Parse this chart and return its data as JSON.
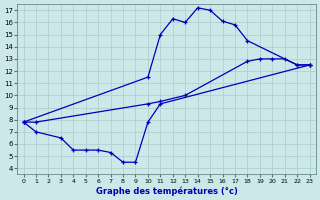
{
  "xlabel": "Graphe des températures (°c)",
  "bg_color": "#cce8e8",
  "grid_color": "#aacccc",
  "line_color": "#0000bb",
  "xlim": [
    -0.5,
    23.5
  ],
  "ylim": [
    3.5,
    17.5
  ],
  "xticks": [
    0,
    1,
    2,
    3,
    4,
    5,
    6,
    7,
    8,
    9,
    10,
    11,
    12,
    13,
    14,
    15,
    16,
    17,
    18,
    19,
    20,
    21,
    22,
    23
  ],
  "yticks": [
    4,
    5,
    6,
    7,
    8,
    9,
    10,
    11,
    12,
    13,
    14,
    15,
    16,
    17
  ],
  "series": {
    "line_high": {
      "x": [
        0,
        10,
        11,
        12,
        13,
        14,
        15,
        16,
        17,
        18,
        22,
        23
      ],
      "y": [
        7.8,
        11.5,
        15.0,
        16.3,
        16.0,
        17.2,
        17.0,
        16.1,
        15.8,
        14.5,
        12.5,
        12.5
      ]
    },
    "line_mid": {
      "x": [
        0,
        1,
        10,
        11,
        13,
        18,
        19,
        20,
        21,
        22,
        23
      ],
      "y": [
        7.8,
        7.8,
        9.3,
        9.5,
        10.0,
        12.8,
        13.0,
        13.0,
        13.0,
        12.5,
        12.5
      ]
    },
    "line_low": {
      "x": [
        0,
        1,
        3,
        4,
        5,
        6,
        7,
        8,
        9,
        10,
        11,
        23
      ],
      "y": [
        7.8,
        7.0,
        6.5,
        5.5,
        5.5,
        5.5,
        5.3,
        4.5,
        4.5,
        7.8,
        9.3,
        12.5
      ]
    }
  }
}
